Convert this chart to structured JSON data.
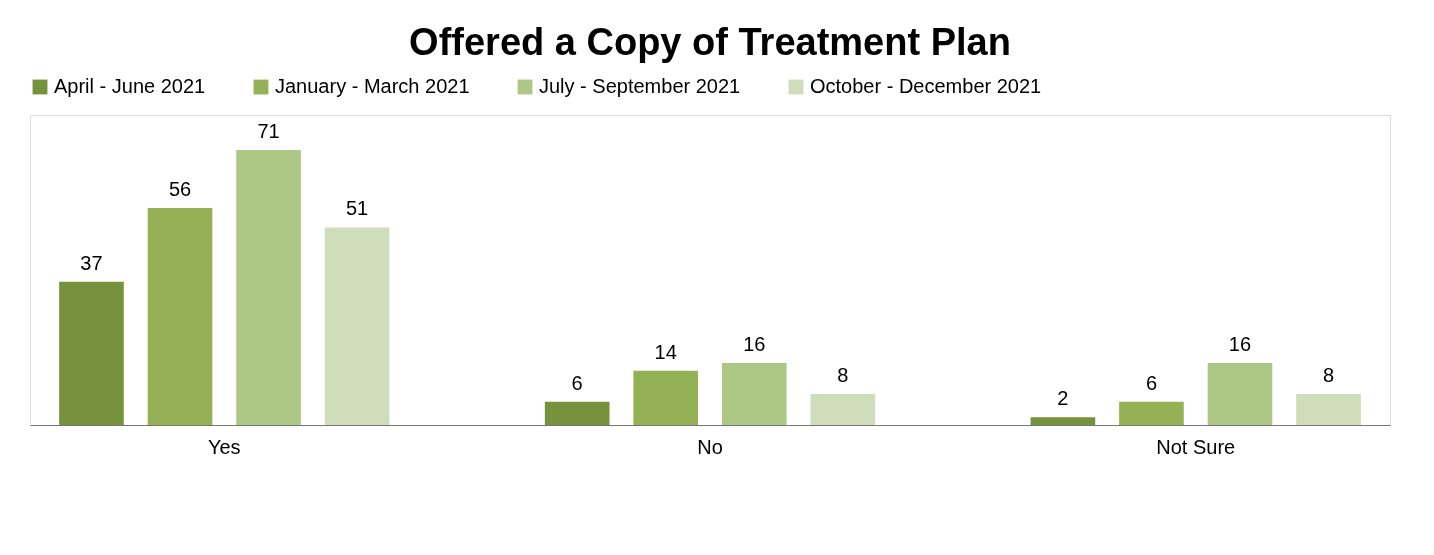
{
  "chart_data": {
    "type": "bar",
    "title": "Offered a Copy of Treatment Plan",
    "categories": [
      "Yes",
      "No",
      "Not Sure"
    ],
    "series": [
      {
        "name": "April - June 2021",
        "color": "#77923c",
        "values": [
          37,
          6,
          2
        ]
      },
      {
        "name": "January - March 2021",
        "color": "#94b255",
        "values": [
          56,
          14,
          6
        ]
      },
      {
        "name": "July - September 2021",
        "color": "#adc785",
        "values": [
          71,
          16,
          16
        ]
      },
      {
        "name": "October - December 2021",
        "color": "#d0ddba",
        "values": [
          51,
          8,
          8
        ]
      }
    ],
    "data_labels": true,
    "legend": "top",
    "grid": false
  }
}
